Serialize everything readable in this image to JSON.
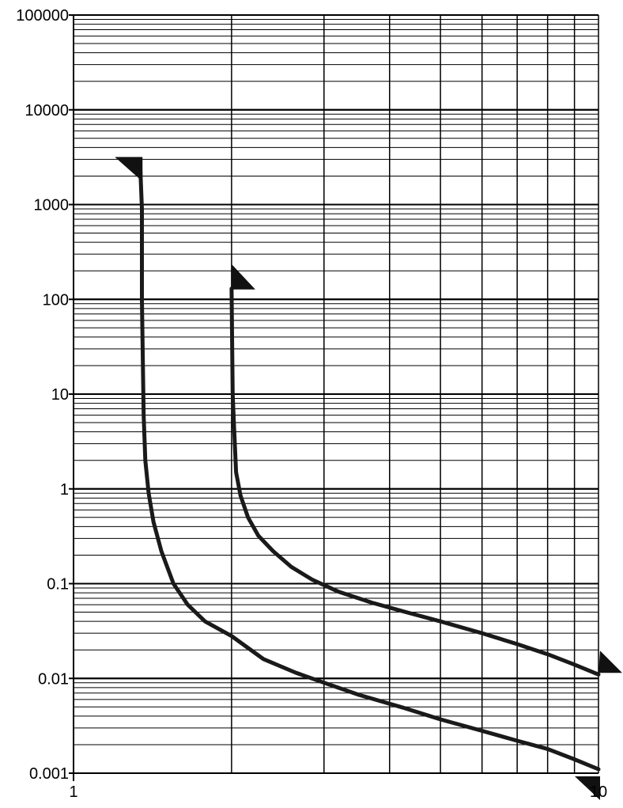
{
  "chart_data": {
    "type": "line",
    "title": "",
    "xlabel": "",
    "ylabel": "",
    "x_scale": "log",
    "y_scale": "log",
    "xlim": [
      1,
      10
    ],
    "ylim": [
      0.001,
      100000
    ],
    "grid": true,
    "x_tick_labels": [
      {
        "value": 1,
        "label": "1"
      },
      {
        "value": 10,
        "label": "10"
      }
    ],
    "y_tick_labels": [
      {
        "value": 100000,
        "label": "100000"
      },
      {
        "value": 10000,
        "label": "10000"
      },
      {
        "value": 1000,
        "label": "1000"
      },
      {
        "value": 100,
        "label": "100"
      },
      {
        "value": 10,
        "label": "10"
      },
      {
        "value": 1,
        "label": "1"
      },
      {
        "value": 0.1,
        "label": "0.1"
      },
      {
        "value": 0.01,
        "label": "0.01"
      },
      {
        "value": 0.001,
        "label": "0.001"
      }
    ],
    "series": [
      {
        "x": [
          1.34,
          1.35,
          1.35,
          1.36,
          1.37,
          1.39,
          1.42,
          1.47,
          1.55,
          1.65,
          1.78,
          2.0,
          2.3,
          2.65,
          3.0,
          3.5,
          4.2,
          5.0,
          6.0,
          7.0,
          8.0,
          9.0,
          10.0
        ],
        "y": [
          2500,
          900,
          100,
          6,
          2.0,
          0.9,
          0.45,
          0.22,
          0.1,
          0.06,
          0.04,
          0.028,
          0.016,
          0.0115,
          0.009,
          0.0067,
          0.005,
          0.0037,
          0.0028,
          0.0022,
          0.0018,
          0.0014,
          0.0011
        ]
      },
      {
        "x": [
          2.0,
          2.01,
          2.02,
          2.04,
          2.08,
          2.15,
          2.25,
          2.4,
          2.6,
          2.85,
          3.2,
          3.7,
          4.3,
          5.0,
          6.0,
          7.0,
          8.0,
          9.0,
          10.0
        ],
        "y": [
          130,
          10,
          5,
          1.5,
          0.85,
          0.5,
          0.32,
          0.22,
          0.15,
          0.11,
          0.082,
          0.063,
          0.05,
          0.04,
          0.03,
          0.023,
          0.018,
          0.014,
          0.011
        ]
      }
    ],
    "end_markers": [
      {
        "x": 1.33,
        "y": 3000
      },
      {
        "x": 2.0,
        "y": 160
      },
      {
        "x": 10.0,
        "y": 0.011
      },
      {
        "x": 10.0,
        "y": 0.001
      }
    ]
  }
}
